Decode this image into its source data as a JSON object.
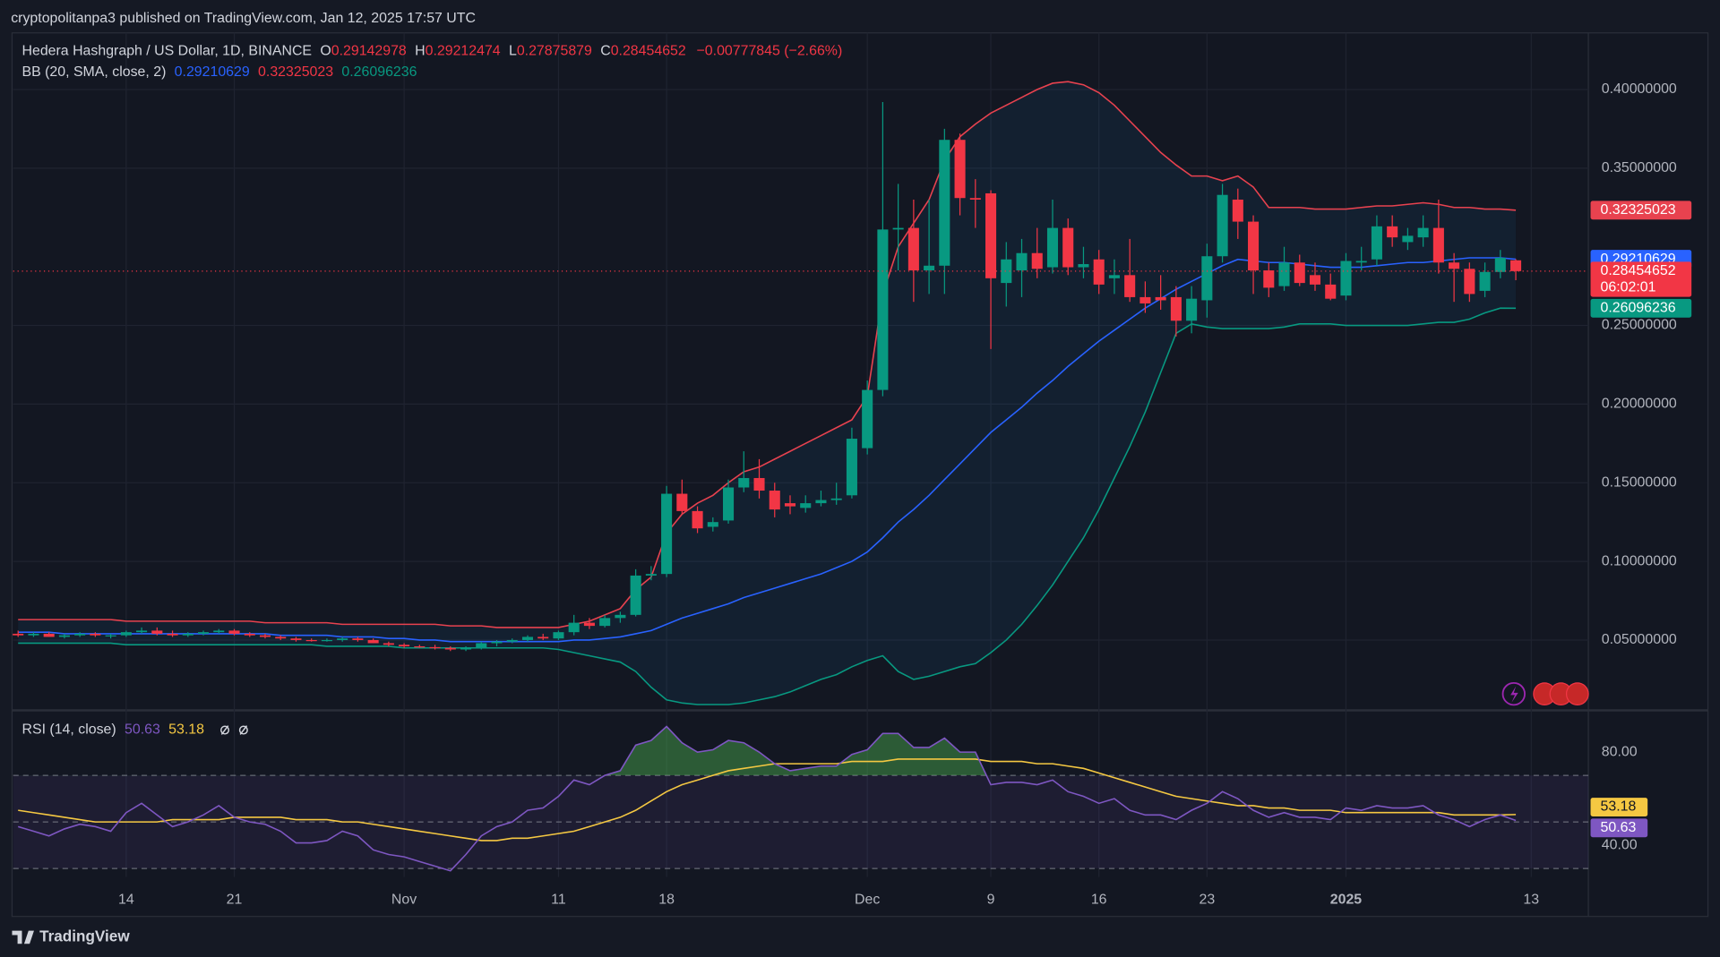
{
  "publisher_note": "cryptopolitanpa3 published on TradingView.com, Jan 12, 2025 17:57 UTC",
  "brand": "TradingView",
  "chart_data": [
    {
      "type": "candlestick",
      "title": "Hedera Hashgraph / US Dollar, 1D, BINANCE",
      "ohlc_labels": [
        "O",
        "H",
        "L",
        "C"
      ],
      "change_label": "−0.00777845 (−2.66%)",
      "bb_label": "BB (20, SMA, close, 2)",
      "countdown": "06:02:01",
      "up_color": "#089981",
      "down_color": "#f23645",
      "bb_upper_color": "#e8424f",
      "bb_basis_color": "#2962ff",
      "bb_lower_color": "#089981",
      "xlim": [
        -0.32,
        101.7
      ],
      "xticks": [
        {
          "value": 7,
          "label": "14"
        },
        {
          "value": 14,
          "label": "21"
        },
        {
          "value": 25,
          "label": "Nov"
        },
        {
          "value": 35,
          "label": "11"
        },
        {
          "value": 42,
          "label": "18"
        },
        {
          "value": 55,
          "label": "Dec"
        },
        {
          "value": 63,
          "label": "9"
        },
        {
          "value": 70,
          "label": "16"
        },
        {
          "value": 77,
          "label": "23"
        },
        {
          "value": 86,
          "label": "2025"
        },
        {
          "value": 98,
          "label": "13"
        }
      ],
      "ylim": [
        0.006,
        0.436
      ],
      "yticks": [
        {
          "value": 0.05,
          "label": "0.05000000"
        },
        {
          "value": 0.1,
          "label": "0.10000000"
        },
        {
          "value": 0.15,
          "label": "0.15000000"
        },
        {
          "value": 0.2,
          "label": "0.20000000"
        },
        {
          "value": 0.25,
          "label": "0.25000000"
        },
        {
          "value": 0.35,
          "label": "0.35000000"
        },
        {
          "value": 0.4,
          "label": "0.40000000"
        }
      ],
      "grid": true,
      "candles": [
        [
          0.054,
          0.056,
          0.052,
          0.053
        ],
        [
          0.053,
          0.055,
          0.052,
          0.054
        ],
        [
          0.054,
          0.055,
          0.052,
          0.052
        ],
        [
          0.052,
          0.054,
          0.051,
          0.053
        ],
        [
          0.053,
          0.055,
          0.052,
          0.054
        ],
        [
          0.054,
          0.055,
          0.052,
          0.053
        ],
        [
          0.053,
          0.054,
          0.051,
          0.053
        ],
        [
          0.053,
          0.056,
          0.052,
          0.055
        ],
        [
          0.055,
          0.058,
          0.054,
          0.056
        ],
        [
          0.056,
          0.058,
          0.053,
          0.054
        ],
        [
          0.054,
          0.056,
          0.052,
          0.053
        ],
        [
          0.053,
          0.055,
          0.052,
          0.054
        ],
        [
          0.054,
          0.056,
          0.053,
          0.055
        ],
        [
          0.055,
          0.057,
          0.054,
          0.056
        ],
        [
          0.056,
          0.057,
          0.053,
          0.054
        ],
        [
          0.054,
          0.055,
          0.052,
          0.053
        ],
        [
          0.053,
          0.054,
          0.051,
          0.052
        ],
        [
          0.052,
          0.053,
          0.05,
          0.051
        ],
        [
          0.051,
          0.052,
          0.049,
          0.05
        ],
        [
          0.05,
          0.051,
          0.049,
          0.0495
        ],
        [
          0.0495,
          0.051,
          0.049,
          0.05
        ],
        [
          0.05,
          0.052,
          0.049,
          0.051
        ],
        [
          0.051,
          0.052,
          0.049,
          0.05
        ],
        [
          0.05,
          0.051,
          0.048,
          0.048
        ],
        [
          0.048,
          0.049,
          0.046,
          0.047
        ],
        [
          0.047,
          0.048,
          0.045,
          0.046
        ],
        [
          0.046,
          0.047,
          0.045,
          0.0455
        ],
        [
          0.0455,
          0.047,
          0.044,
          0.045
        ],
        [
          0.045,
          0.046,
          0.043,
          0.044
        ],
        [
          0.044,
          0.046,
          0.043,
          0.045
        ],
        [
          0.045,
          0.049,
          0.044,
          0.048
        ],
        [
          0.048,
          0.05,
          0.046,
          0.049
        ],
        [
          0.049,
          0.051,
          0.048,
          0.05
        ],
        [
          0.05,
          0.053,
          0.049,
          0.052
        ],
        [
          0.052,
          0.054,
          0.05,
          0.051
        ],
        [
          0.051,
          0.056,
          0.05,
          0.055
        ],
        [
          0.055,
          0.066,
          0.053,
          0.061
        ],
        [
          0.061,
          0.064,
          0.057,
          0.059
        ],
        [
          0.059,
          0.066,
          0.058,
          0.064
        ],
        [
          0.064,
          0.068,
          0.061,
          0.066
        ],
        [
          0.066,
          0.095,
          0.065,
          0.091
        ],
        [
          0.091,
          0.097,
          0.088,
          0.092
        ],
        [
          0.092,
          0.148,
          0.09,
          0.143
        ],
        [
          0.143,
          0.152,
          0.13,
          0.132
        ],
        [
          0.132,
          0.135,
          0.118,
          0.121
        ],
        [
          0.122,
          0.128,
          0.119,
          0.125
        ],
        [
          0.126,
          0.152,
          0.124,
          0.147
        ],
        [
          0.147,
          0.17,
          0.144,
          0.153
        ],
        [
          0.153,
          0.165,
          0.14,
          0.145
        ],
        [
          0.145,
          0.15,
          0.128,
          0.133
        ],
        [
          0.137,
          0.142,
          0.13,
          0.135
        ],
        [
          0.134,
          0.142,
          0.131,
          0.137
        ],
        [
          0.137,
          0.145,
          0.135,
          0.139
        ],
        [
          0.139,
          0.15,
          0.136,
          0.14
        ],
        [
          0.142,
          0.185,
          0.14,
          0.178
        ],
        [
          0.172,
          0.215,
          0.168,
          0.209
        ],
        [
          0.209,
          0.392,
          0.205,
          0.311
        ],
        [
          0.311,
          0.34,
          0.285,
          0.312
        ],
        [
          0.312,
          0.33,
          0.265,
          0.285
        ],
        [
          0.285,
          0.33,
          0.27,
          0.288
        ],
        [
          0.288,
          0.375,
          0.27,
          0.368
        ],
        [
          0.368,
          0.372,
          0.32,
          0.331
        ],
        [
          0.331,
          0.343,
          0.312,
          0.33
        ],
        [
          0.334,
          0.336,
          0.235,
          0.28
        ],
        [
          0.277,
          0.303,
          0.262,
          0.292
        ],
        [
          0.285,
          0.305,
          0.268,
          0.296
        ],
        [
          0.296,
          0.312,
          0.28,
          0.286
        ],
        [
          0.287,
          0.33,
          0.283,
          0.312
        ],
        [
          0.312,
          0.318,
          0.282,
          0.287
        ],
        [
          0.287,
          0.3,
          0.28,
          0.289
        ],
        [
          0.292,
          0.298,
          0.27,
          0.276
        ],
        [
          0.28,
          0.292,
          0.27,
          0.282
        ],
        [
          0.282,
          0.305,
          0.265,
          0.268
        ],
        [
          0.268,
          0.278,
          0.258,
          0.264
        ],
        [
          0.268,
          0.282,
          0.26,
          0.266
        ],
        [
          0.268,
          0.275,
          0.243,
          0.253
        ],
        [
          0.253,
          0.275,
          0.245,
          0.267
        ],
        [
          0.266,
          0.302,
          0.255,
          0.294
        ],
        [
          0.294,
          0.34,
          0.29,
          0.333
        ],
        [
          0.33,
          0.337,
          0.305,
          0.316
        ],
        [
          0.316,
          0.32,
          0.27,
          0.285
        ],
        [
          0.285,
          0.29,
          0.268,
          0.274
        ],
        [
          0.275,
          0.3,
          0.272,
          0.29
        ],
        [
          0.29,
          0.295,
          0.275,
          0.277
        ],
        [
          0.282,
          0.29,
          0.272,
          0.276
        ],
        [
          0.276,
          0.283,
          0.266,
          0.267
        ],
        [
          0.269,
          0.296,
          0.266,
          0.291
        ],
        [
          0.29,
          0.3,
          0.285,
          0.291
        ],
        [
          0.292,
          0.32,
          0.288,
          0.313
        ],
        [
          0.313,
          0.32,
          0.3,
          0.306
        ],
        [
          0.303,
          0.312,
          0.298,
          0.307
        ],
        [
          0.306,
          0.32,
          0.3,
          0.312
        ],
        [
          0.312,
          0.33,
          0.283,
          0.29
        ],
        [
          0.29,
          0.296,
          0.265,
          0.286
        ],
        [
          0.286,
          0.29,
          0.265,
          0.27
        ],
        [
          0.272,
          0.29,
          0.268,
          0.284
        ],
        [
          0.284,
          0.298,
          0.28,
          0.293
        ],
        [
          0.29142978,
          0.29212474,
          0.27875879,
          0.28454652
        ]
      ],
      "bb_upper": [
        0.063,
        0.063,
        0.063,
        0.063,
        0.063,
        0.063,
        0.063,
        0.062,
        0.062,
        0.062,
        0.062,
        0.062,
        0.062,
        0.062,
        0.062,
        0.062,
        0.061,
        0.061,
        0.061,
        0.061,
        0.061,
        0.06,
        0.06,
        0.06,
        0.06,
        0.06,
        0.06,
        0.06,
        0.059,
        0.059,
        0.059,
        0.058,
        0.058,
        0.058,
        0.058,
        0.058,
        0.06,
        0.062,
        0.066,
        0.07,
        0.082,
        0.09,
        0.118,
        0.13,
        0.137,
        0.142,
        0.15,
        0.157,
        0.16,
        0.165,
        0.17,
        0.175,
        0.18,
        0.185,
        0.19,
        0.205,
        0.27,
        0.3,
        0.315,
        0.33,
        0.355,
        0.37,
        0.378,
        0.385,
        0.39,
        0.395,
        0.4,
        0.404,
        0.405,
        0.403,
        0.398,
        0.39,
        0.38,
        0.37,
        0.36,
        0.352,
        0.345,
        0.345,
        0.342,
        0.345,
        0.338,
        0.325,
        0.325,
        0.325,
        0.324,
        0.324,
        0.324,
        0.325,
        0.326,
        0.326,
        0.327,
        0.328,
        0.327,
        0.325,
        0.325,
        0.324,
        0.324,
        0.32325023
      ],
      "bb_basis": [
        0.055,
        0.055,
        0.055,
        0.054,
        0.054,
        0.054,
        0.054,
        0.054,
        0.054,
        0.054,
        0.054,
        0.054,
        0.054,
        0.054,
        0.054,
        0.054,
        0.054,
        0.053,
        0.053,
        0.053,
        0.053,
        0.052,
        0.052,
        0.052,
        0.051,
        0.051,
        0.05,
        0.05,
        0.049,
        0.049,
        0.049,
        0.049,
        0.049,
        0.049,
        0.049,
        0.049,
        0.05,
        0.05,
        0.051,
        0.052,
        0.054,
        0.056,
        0.06,
        0.064,
        0.067,
        0.07,
        0.073,
        0.077,
        0.08,
        0.083,
        0.086,
        0.089,
        0.092,
        0.096,
        0.1,
        0.106,
        0.115,
        0.125,
        0.133,
        0.142,
        0.152,
        0.162,
        0.172,
        0.182,
        0.19,
        0.198,
        0.207,
        0.215,
        0.224,
        0.232,
        0.24,
        0.247,
        0.254,
        0.261,
        0.267,
        0.273,
        0.278,
        0.283,
        0.288,
        0.292,
        0.291,
        0.29,
        0.29,
        0.289,
        0.288,
        0.287,
        0.287,
        0.287,
        0.288,
        0.289,
        0.29,
        0.29,
        0.291,
        0.292,
        0.293,
        0.293,
        0.293,
        0.29210629
      ],
      "bb_lower": [
        0.048,
        0.048,
        0.048,
        0.048,
        0.048,
        0.048,
        0.048,
        0.047,
        0.047,
        0.047,
        0.047,
        0.047,
        0.047,
        0.047,
        0.047,
        0.047,
        0.047,
        0.047,
        0.047,
        0.047,
        0.046,
        0.046,
        0.046,
        0.046,
        0.046,
        0.045,
        0.045,
        0.045,
        0.045,
        0.045,
        0.045,
        0.045,
        0.045,
        0.045,
        0.045,
        0.044,
        0.042,
        0.04,
        0.038,
        0.036,
        0.03,
        0.02,
        0.012,
        0.01,
        0.009,
        0.009,
        0.009,
        0.01,
        0.012,
        0.014,
        0.017,
        0.021,
        0.025,
        0.028,
        0.033,
        0.037,
        0.04,
        0.03,
        0.025,
        0.027,
        0.03,
        0.033,
        0.035,
        0.042,
        0.05,
        0.06,
        0.072,
        0.085,
        0.1,
        0.115,
        0.133,
        0.153,
        0.173,
        0.195,
        0.22,
        0.245,
        0.251,
        0.249,
        0.248,
        0.248,
        0.248,
        0.248,
        0.249,
        0.251,
        0.251,
        0.251,
        0.25,
        0.25,
        0.25,
        0.25,
        0.25,
        0.251,
        0.252,
        0.252,
        0.254,
        0.258,
        0.261,
        0.26096236
      ]
    },
    {
      "type": "line",
      "title": "RSI (14, close)",
      "rsi_color": "#7e57c2",
      "ma_color": "#f5c842",
      "ylim": [
        24,
        97
      ],
      "yticks": [
        {
          "value": 40,
          "label": "40.00"
        },
        {
          "value": 80,
          "label": "80.00"
        }
      ],
      "bands": [
        70,
        50,
        30
      ],
      "values": [
        48,
        46,
        44,
        47,
        49,
        48,
        46,
        54,
        58,
        53,
        48,
        50,
        53,
        57,
        52,
        50,
        49,
        46,
        41,
        41,
        42,
        46,
        44,
        38,
        36,
        35,
        33,
        31,
        29,
        36,
        44,
        48,
        50,
        55,
        56,
        61,
        68,
        66,
        70,
        72,
        83,
        85,
        91,
        84,
        80,
        81,
        85,
        84,
        80,
        75,
        72,
        73,
        74,
        74,
        79,
        81,
        88,
        88,
        82,
        82,
        86,
        80,
        80,
        66,
        67,
        67,
        66,
        68,
        63,
        61,
        58,
        60,
        55,
        53,
        53,
        51,
        55,
        58,
        63,
        60,
        55,
        52,
        54,
        52,
        52,
        51,
        56,
        55,
        57,
        56,
        56,
        57,
        53,
        51,
        48,
        51,
        53,
        50.63
      ],
      "ma": [
        55,
        54,
        53,
        52,
        51,
        50,
        50,
        50,
        50,
        50,
        51,
        51,
        51,
        51,
        52,
        52,
        52,
        52,
        51,
        51,
        51,
        50,
        50,
        49,
        48,
        47,
        46,
        45,
        44,
        43,
        42,
        42,
        43,
        43,
        44,
        45,
        46,
        48,
        50,
        52,
        55,
        59,
        63,
        66,
        68,
        70,
        72,
        73,
        74,
        75,
        75,
        75,
        75,
        75,
        76,
        76,
        76,
        77,
        77,
        77,
        77,
        77,
        77,
        76,
        76,
        76,
        75,
        75,
        74,
        73,
        71,
        69,
        67,
        65,
        63,
        61,
        60,
        59,
        58,
        57,
        57,
        56,
        56,
        55,
        55,
        55,
        54,
        54,
        54,
        54,
        54,
        54,
        54,
        53,
        53,
        53,
        53,
        53.18
      ]
    }
  ]
}
